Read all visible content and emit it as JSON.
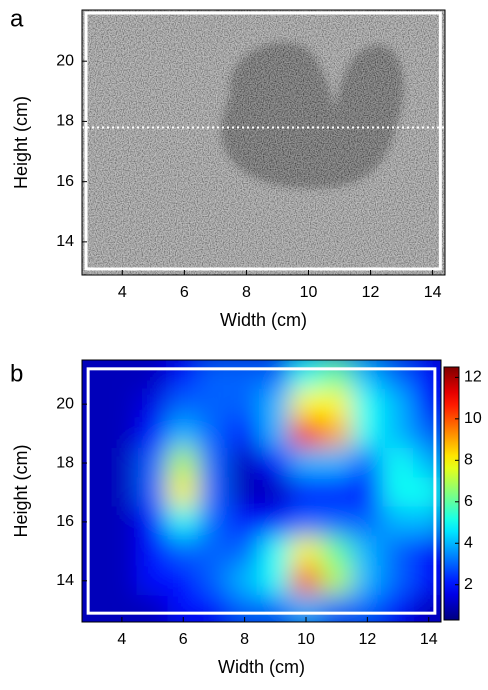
{
  "chart_data": [
    {
      "type": "image",
      "label": "a",
      "xlabel": "Width (cm)",
      "ylabel": "Height (cm)",
      "xlim": [
        2.7,
        14.4
      ],
      "ylim": [
        12.9,
        21.7
      ],
      "xticks": [
        4,
        6,
        8,
        10,
        12,
        14
      ],
      "yticks": [
        14,
        16,
        18,
        20
      ],
      "box": {
        "x": [
          2.83,
          14.25
        ],
        "y": [
          13.1,
          21.6
        ]
      },
      "hline": 17.8
    },
    {
      "type": "heatmap",
      "label": "b",
      "xlabel": "Width (cm)",
      "ylabel": "Height (cm)",
      "xlim": [
        2.7,
        14.4
      ],
      "ylim": [
        12.6,
        21.5
      ],
      "xticks": [
        4,
        6,
        8,
        10,
        12,
        14
      ],
      "yticks": [
        14,
        16,
        18,
        20
      ],
      "box": {
        "x": [
          2.9,
          14.2
        ],
        "y": [
          12.9,
          21.2
        ]
      },
      "colormap": "jet",
      "clim": [
        0.3,
        12.5
      ],
      "cticks": [
        2,
        4,
        6,
        8,
        10,
        12
      ],
      "x": [
        3,
        4,
        5,
        6,
        7,
        8,
        9,
        10,
        11,
        12,
        13,
        14
      ],
      "y": [
        21,
        20,
        19,
        18,
        17,
        16,
        15,
        14,
        13
      ],
      "z": [
        [
          1,
          1,
          1,
          2,
          3,
          3,
          3,
          5,
          6,
          4,
          3,
          2
        ],
        [
          1,
          1,
          1.5,
          3,
          3,
          3,
          4,
          8,
          8,
          5,
          4,
          2
        ],
        [
          1,
          1,
          2,
          4,
          3,
          2,
          4,
          11,
          9,
          5,
          4,
          3
        ],
        [
          1,
          1,
          3,
          7,
          3,
          1,
          2,
          4,
          4,
          3,
          5,
          4
        ],
        [
          1,
          1,
          3,
          8,
          3,
          1,
          1,
          2,
          2,
          2,
          5,
          5
        ],
        [
          1,
          1,
          2,
          5,
          3,
          2,
          2,
          3,
          3,
          3,
          4,
          4
        ],
        [
          1,
          1,
          2,
          3,
          3,
          3,
          5,
          8,
          6,
          4,
          3,
          2
        ],
        [
          1,
          1,
          2,
          2,
          3,
          4,
          5,
          10,
          7,
          4,
          3,
          2
        ],
        [
          1,
          1,
          1,
          2,
          2,
          3,
          3,
          4,
          3,
          3,
          2,
          1
        ]
      ]
    }
  ]
}
